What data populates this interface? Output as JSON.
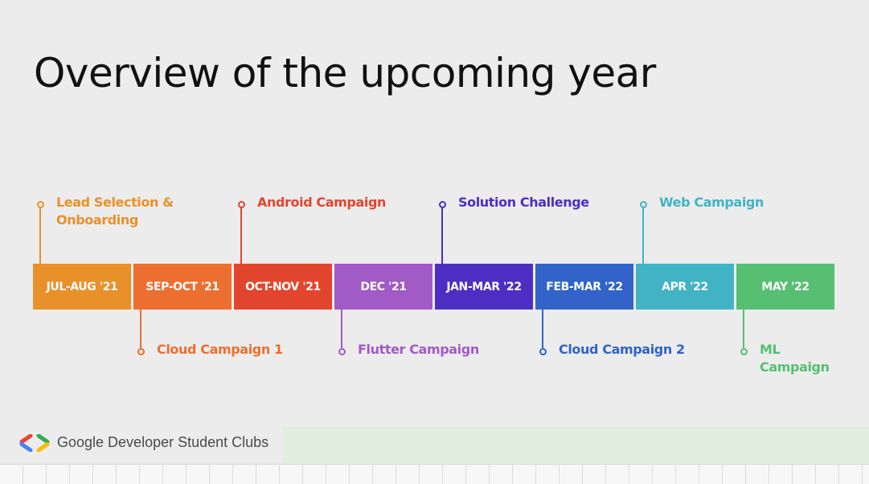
{
  "slide": {
    "title": "Overview of the upcoming year"
  },
  "timeline": {
    "periods": [
      {
        "label": "JUL-AUG '21",
        "color": "#e8912b"
      },
      {
        "label": "SEP-OCT '21",
        "color": "#ec6f30"
      },
      {
        "label": "OCT-NOV '21",
        "color": "#e2452e"
      },
      {
        "label": "DEC '21",
        "color": "#a25ac6"
      },
      {
        "label": "JAN-MAR '22",
        "color": "#4c2fc2"
      },
      {
        "label": "FEB-MAR '22",
        "color": "#3163c8"
      },
      {
        "label": "APR '22",
        "color": "#42b3c5"
      },
      {
        "label": "MAY '22",
        "color": "#56bf72"
      }
    ],
    "events": [
      {
        "line1": "Lead Selection &",
        "line2": "Onboarding",
        "period": "JUL-AUG '21",
        "side": "above",
        "color": "#e8912b"
      },
      {
        "line1": "Cloud Campaign 1",
        "line2": "",
        "period": "SEP-OCT '21",
        "side": "below",
        "color": "#ec6f30"
      },
      {
        "line1": "Android Campaign",
        "line2": "",
        "period": "OCT-NOV '21",
        "side": "above",
        "color": "#e2452e"
      },
      {
        "line1": "Flutter Campaign",
        "line2": "",
        "period": "DEC '21",
        "side": "below",
        "color": "#a25ac6"
      },
      {
        "line1": "Solution Challenge",
        "line2": "",
        "period": "JAN-MAR '22",
        "side": "above",
        "color": "#4c2fc2"
      },
      {
        "line1": "Cloud Campaign 2",
        "line2": "",
        "period": "FEB-MAR '22",
        "side": "below",
        "color": "#3163c8"
      },
      {
        "line1": "Web Campaign",
        "line2": "",
        "period": "APR '22",
        "side": "above",
        "color": "#42b3c5"
      },
      {
        "line1": "ML",
        "line2": "Campaign",
        "period": "MAY '22",
        "side": "below",
        "color": "#56bf72"
      }
    ]
  },
  "footer": {
    "brand": "Google Developer Student Clubs",
    "logo_colors": {
      "left_top": "#ea4335",
      "left_bottom": "#4285f4",
      "right_top": "#34a853",
      "right_bottom": "#fbbc04"
    }
  }
}
